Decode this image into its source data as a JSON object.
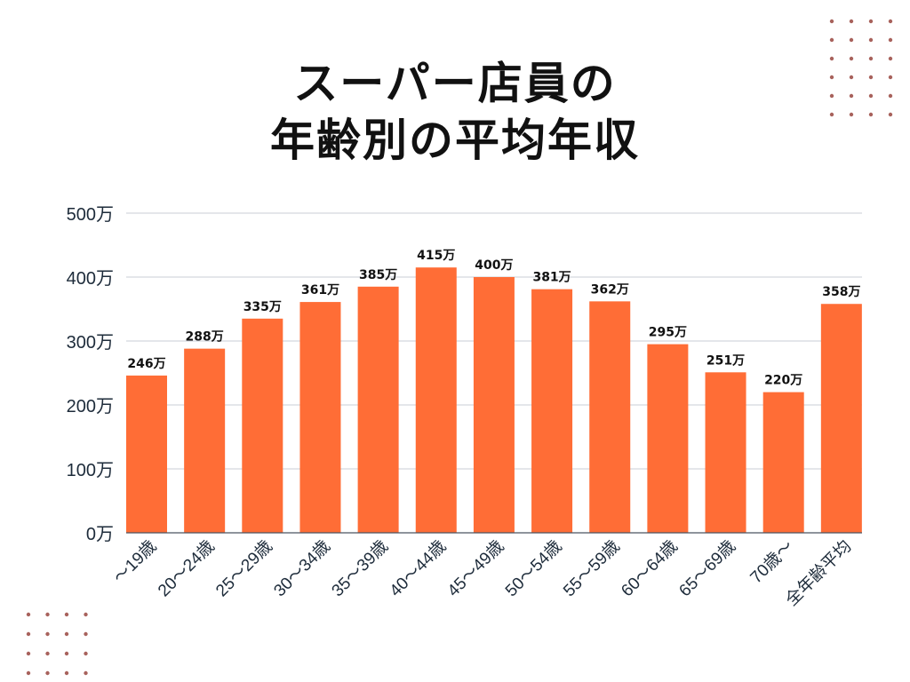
{
  "chart_data": {
    "type": "bar",
    "title_lines": [
      "スーパー店員の",
      "年齢別の平均年収"
    ],
    "categories": [
      "〜19歳",
      "20〜24歳",
      "25〜29歳",
      "30〜34歳",
      "35〜39歳",
      "40〜44歳",
      "45〜49歳",
      "50〜54歳",
      "55〜59歳",
      "60〜64歳",
      "65〜69歳",
      "70歳〜",
      "全年齢平均"
    ],
    "values": [
      246,
      288,
      335,
      361,
      385,
      415,
      400,
      381,
      362,
      295,
      251,
      220,
      358
    ],
    "value_labels": [
      "246万",
      "288万",
      "335万",
      "361万",
      "385万",
      "415万",
      "400万",
      "381万",
      "362万",
      "295万",
      "251万",
      "220万",
      "358万"
    ],
    "yticks": [
      0,
      100,
      200,
      300,
      400,
      500
    ],
    "ytick_labels": [
      "0万",
      "100万",
      "200万",
      "300万",
      "400万",
      "500万"
    ],
    "ylim": [
      0,
      500
    ],
    "xlabel": "",
    "ylabel": "",
    "grid": true,
    "colors": {
      "bar": "#ff6d36",
      "grid": "#c9ccd4",
      "axis_text": "#1d2b3a",
      "decor_dots": "#a8625c"
    }
  }
}
